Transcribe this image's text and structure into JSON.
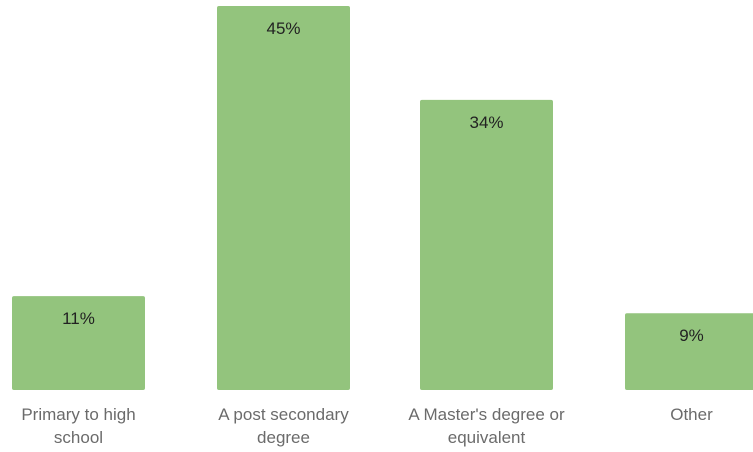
{
  "chart_data": {
    "type": "bar",
    "categories": [
      [
        "Primary to high",
        "school"
      ],
      [
        "A post secondary",
        "degree"
      ],
      [
        "A Master's degree or",
        "equivalent"
      ],
      [
        "Other"
      ]
    ],
    "values": [
      11,
      45,
      34,
      9
    ],
    "value_labels": [
      "11%",
      "45%",
      "34%",
      "9%"
    ],
    "unit": "%",
    "bar_color": "#93c47d",
    "label_color": "#222222",
    "category_label_color": "#6b6b6b",
    "ylim": [
      0,
      45
    ],
    "grid": false,
    "legend": "none"
  }
}
